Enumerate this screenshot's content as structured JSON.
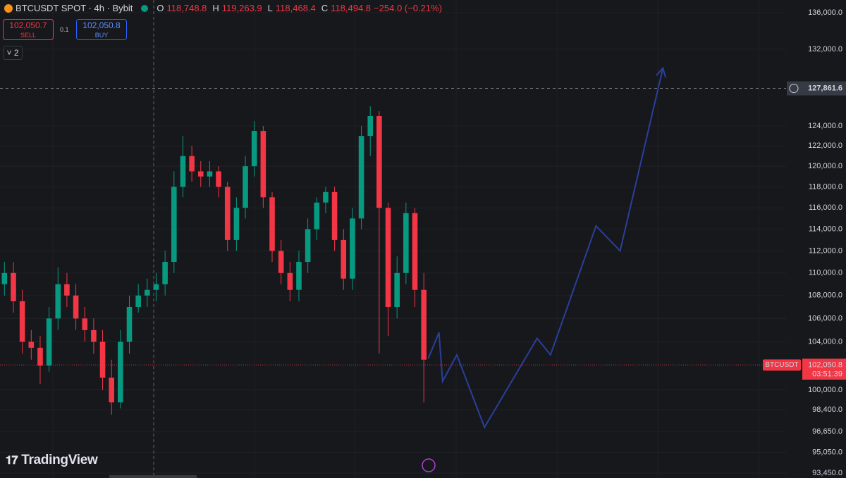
{
  "header": {
    "symbol": "BTCUSDT SPOT · 4h · Bybit",
    "o_label": "O",
    "o": "118,748.8",
    "h_label": "H",
    "h": "119,263.9",
    "l_label": "L",
    "l": "118,468.4",
    "c_label": "C",
    "c": "118,494.8",
    "change": "−254.0 (−0.21%)",
    "sell_price": "102,050.7",
    "sell": "SELL",
    "qty": "0.1",
    "buy_price": "102,050.8",
    "buy": "BUY",
    "indicators": "2",
    "logo": "TradingView"
  },
  "chart_data": {
    "type": "candlestick",
    "log": true,
    "xlim": [
      0,
      88.1
    ],
    "ylim": [
      93075,
      137412
    ],
    "up_color": "#089981",
    "down_color": "#f23645",
    "open": [
      109000,
      110000,
      107500,
      104000,
      103500,
      102000,
      106000,
      109000,
      108000,
      106000,
      105000,
      104000,
      101000,
      99000,
      104000,
      107000,
      108000,
      108500,
      109000,
      111000,
      118000,
      121000,
      119500,
      119000,
      119500,
      118000,
      113000,
      116000,
      120000,
      123500,
      117000,
      112000,
      110000,
      108500,
      111000,
      114000,
      116500,
      117500,
      113000,
      109500,
      115000,
      123000,
      125000,
      116000,
      107000,
      110000,
      115500,
      108500
    ],
    "high": [
      111000,
      111000,
      108500,
      105000,
      104500,
      107000,
      110500,
      110000,
      109000,
      107000,
      106000,
      105000,
      102500,
      105000,
      108000,
      109000,
      109500,
      110000,
      112000,
      119500,
      123000,
      122000,
      120500,
      120500,
      120000,
      118500,
      117000,
      121000,
      124500,
      124000,
      117500,
      113000,
      111000,
      112000,
      115000,
      117000,
      118000,
      118000,
      114000,
      116000,
      124000,
      126000,
      125500,
      116500,
      111500,
      116500,
      116000,
      110000
    ],
    "low": [
      108000,
      106500,
      103000,
      102500,
      100500,
      101500,
      105000,
      107000,
      105000,
      104000,
      103000,
      100000,
      98000,
      98500,
      103000,
      106500,
      107000,
      107500,
      108000,
      110000,
      117000,
      118500,
      118000,
      118000,
      117000,
      112000,
      112000,
      115000,
      119000,
      116000,
      111000,
      109000,
      107500,
      107500,
      110000,
      113000,
      115500,
      112000,
      108500,
      108500,
      114000,
      121000,
      103000,
      104500,
      106000,
      109000,
      107000,
      99000
    ],
    "close": [
      110000,
      107500,
      104000,
      103500,
      102000,
      106000,
      109000,
      108000,
      106000,
      105000,
      104000,
      101000,
      99000,
      104000,
      107000,
      108000,
      108500,
      109000,
      111000,
      118000,
      121000,
      119500,
      119000,
      119500,
      118000,
      113000,
      116000,
      120000,
      123500,
      117000,
      112000,
      110000,
      108500,
      111000,
      114000,
      116500,
      117500,
      113000,
      109500,
      115000,
      123000,
      125000,
      116000,
      107000,
      110000,
      115500,
      108500,
      102500
    ],
    "projection": {
      "color": "#2a3f9a",
      "x": [
        48,
        49.2,
        49.6,
        51.2,
        54.3,
        60.2,
        61.7,
        66.8,
        69.5,
        74.3
      ],
      "values": [
        102600,
        104800,
        100700,
        102900,
        97000,
        104300,
        102900,
        114300,
        112000,
        130000
      ]
    },
    "yticks": [
      {
        "value": 136000,
        "label": "136,000.0"
      },
      {
        "value": 132000,
        "label": "132,000.0"
      },
      {
        "value": 124000,
        "label": "124,000.0"
      },
      {
        "value": 122000,
        "label": "122,000.0"
      },
      {
        "value": 120000,
        "label": "120,000.0"
      },
      {
        "value": 118000,
        "label": "118,000.0"
      },
      {
        "value": 116000,
        "label": "116,000.0"
      },
      {
        "value": 114000,
        "label": "114,000.0"
      },
      {
        "value": 112000,
        "label": "112,000.0"
      },
      {
        "value": 110000,
        "label": "110,000.0"
      },
      {
        "value": 108000,
        "label": "108,000.0"
      },
      {
        "value": 106000,
        "label": "106,000.0"
      },
      {
        "value": 104000,
        "label": "104,000.0"
      },
      {
        "value": 100000,
        "label": "100,000.0"
      },
      {
        "value": 98400,
        "label": "98,400.0"
      },
      {
        "value": 96650,
        "label": "96,650.0"
      },
      {
        "value": 95050,
        "label": "95,050.0"
      },
      {
        "value": 93450,
        "label": "93,450.0"
      }
    ],
    "crosshair": {
      "value": 127861.6,
      "label": "127,861.6"
    },
    "last_price": {
      "value": 102050.8,
      "label": "102,050.8"
    },
    "symbol_tag": "BTCUSDT",
    "countdown": "03:51:39"
  }
}
